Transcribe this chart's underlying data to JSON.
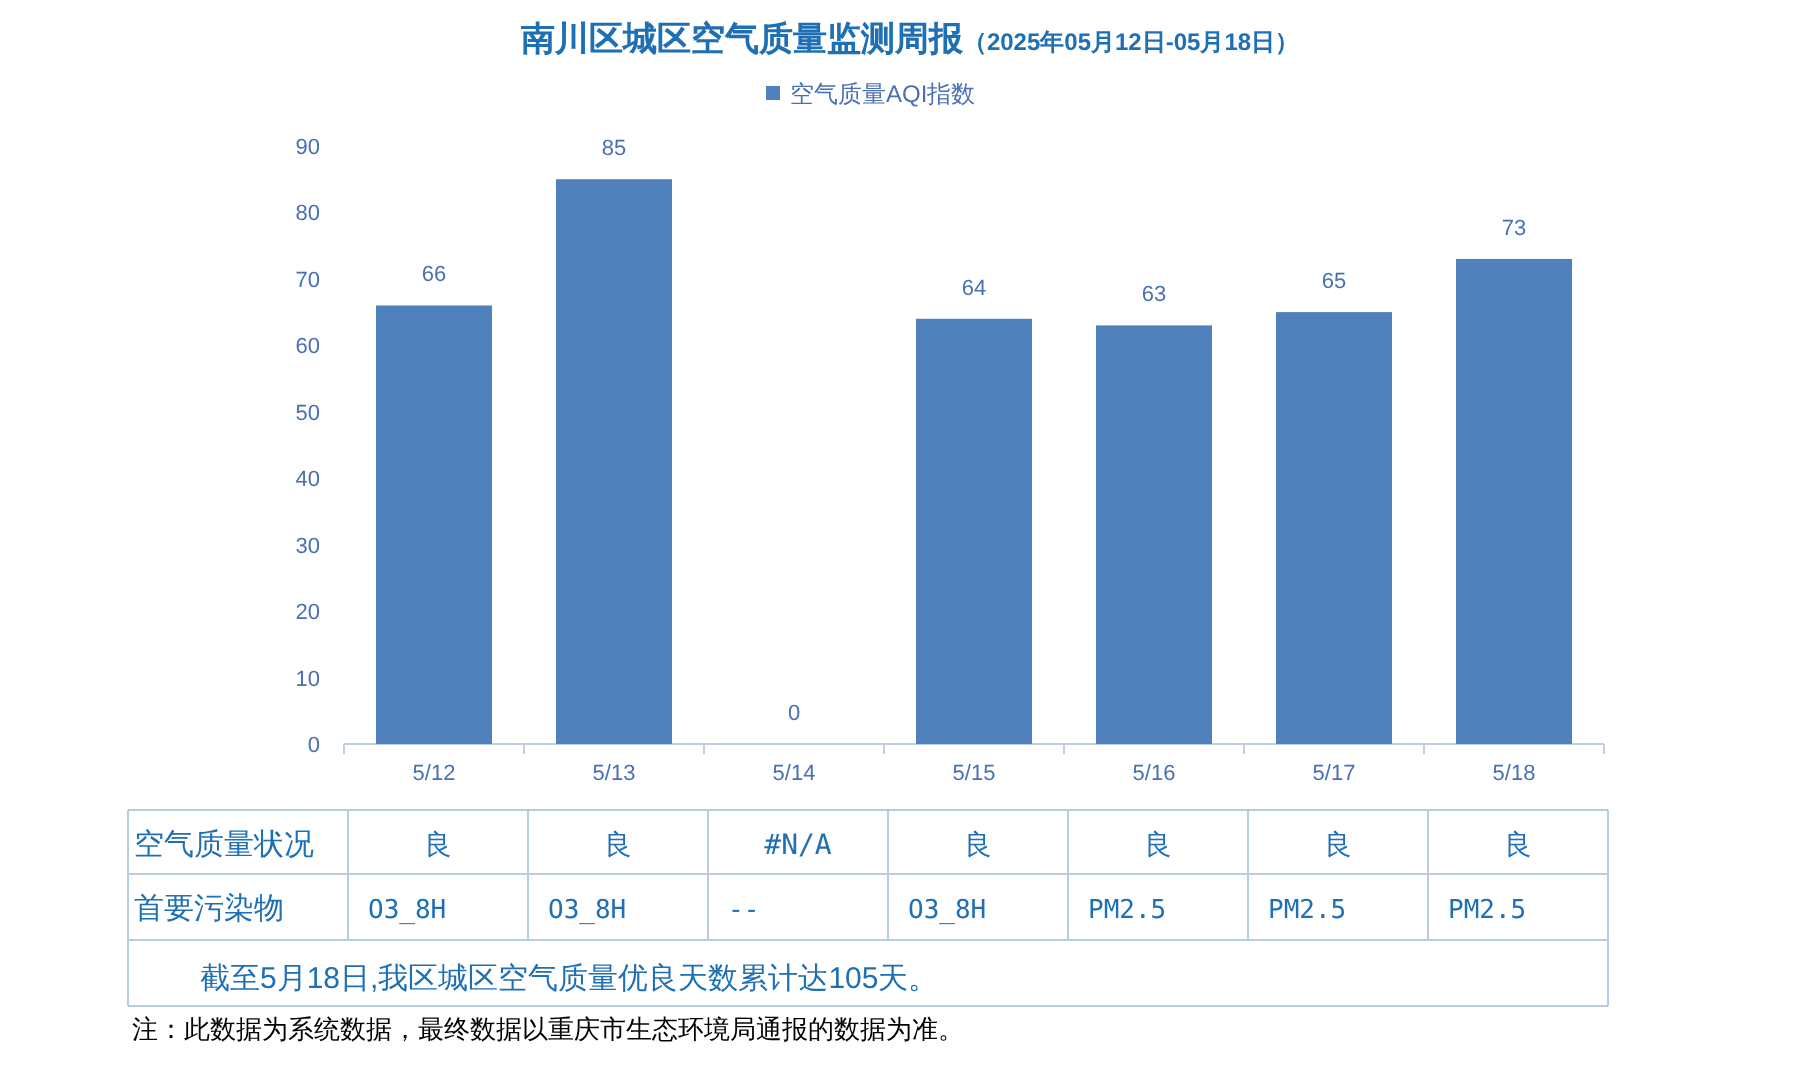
{
  "chart_data": {
    "type": "bar",
    "title": "南川区城区空气质量监测周报",
    "subtitle": "（2025年05月12日-05月18日）",
    "categories": [
      "5/12",
      "5/13",
      "5/14",
      "5/15",
      "5/16",
      "5/17",
      "5/18"
    ],
    "series": [
      {
        "name": "空气质量AQI指数",
        "color": "#4f81bd",
        "values": [
          66,
          85,
          0,
          64,
          63,
          65,
          73
        ]
      }
    ],
    "ylim": [
      0,
      90
    ],
    "yticks": [
      0,
      10,
      20,
      30,
      40,
      50,
      60,
      70,
      80,
      90
    ],
    "data_labels": true,
    "legend": "top",
    "grid": false,
    "annotations": [
      "空气质量状况",
      "良",
      "良",
      "#N/A",
      "良",
      "良",
      "良",
      "良",
      "首要污染物",
      "O3_8H",
      "O3_8H",
      "--",
      "O3_8H",
      "PM2.5",
      "PM2.5",
      "PM2.5",
      "截至5月18日,我区城区空气质量优良天数累计达105天。",
      "注：此数据为系统数据，最终数据以重庆市生态环境局通报的数据为准。"
    ]
  }
}
